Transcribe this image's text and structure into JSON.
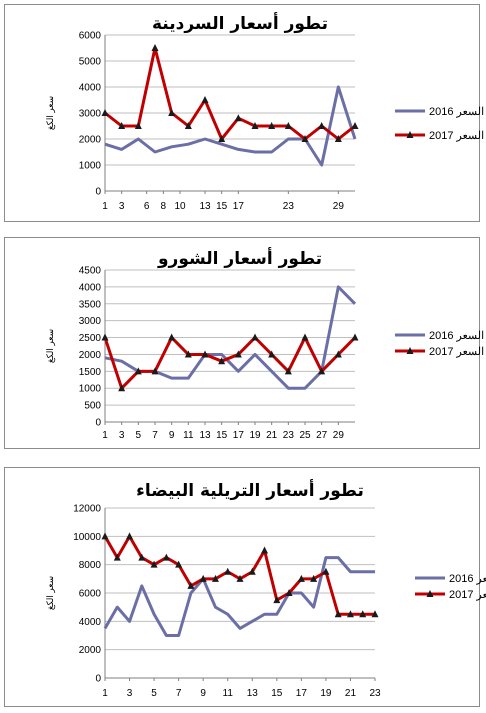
{
  "colors": {
    "series2016": "#6b6fa6",
    "series2017": "#c00000",
    "marker2017": "#1a1a1a",
    "grid": "#bfbfbf",
    "axis": "#7f7f7f"
  },
  "chart_data": [
    {
      "type": "line",
      "title": "تطور أسعار السردينة",
      "ylabel": "سعر الكغ",
      "ylim": [
        0,
        6000
      ],
      "yticks": [
        0,
        1000,
        2000,
        3000,
        4000,
        5000,
        6000
      ],
      "xlim": [
        1,
        31
      ],
      "xticks": [
        1,
        3,
        6,
        8,
        10,
        13,
        15,
        17,
        23,
        29
      ],
      "grid": true,
      "legend": "right",
      "series": [
        {
          "name": "2016 السعر",
          "marker": "none",
          "x": [
            1,
            3,
            5,
            7,
            9,
            11,
            13,
            15,
            17,
            19,
            21,
            23,
            25,
            27,
            29,
            31
          ],
          "y": [
            1800,
            1600,
            2000,
            1500,
            1700,
            1800,
            2000,
            1800,
            1600,
            1500,
            1500,
            2000,
            2000,
            1000,
            4000,
            2000
          ]
        },
        {
          "name": "2017 السعر",
          "marker": "triangle",
          "x": [
            1,
            3,
            5,
            7,
            9,
            11,
            13,
            15,
            17,
            19,
            21,
            23,
            25,
            27,
            29,
            31
          ],
          "y": [
            3000,
            2500,
            2500,
            5500,
            3000,
            2500,
            3500,
            2000,
            2800,
            2500,
            2500,
            2500,
            2000,
            2500,
            2000,
            2500
          ]
        }
      ]
    },
    {
      "type": "line",
      "title": "تطور أسعار الشورو",
      "ylabel": "سعر الكغ",
      "ylim": [
        0,
        4500
      ],
      "yticks": [
        0,
        500,
        1000,
        1500,
        2000,
        2500,
        3000,
        3500,
        4000,
        4500
      ],
      "xlim": [
        1,
        31
      ],
      "xticks": [
        1,
        3,
        5,
        7,
        9,
        11,
        13,
        15,
        17,
        19,
        21,
        23,
        25,
        27,
        29
      ],
      "grid": true,
      "legend": "right",
      "series": [
        {
          "name": "2016 السعر",
          "marker": "none",
          "x": [
            1,
            3,
            5,
            7,
            9,
            11,
            13,
            15,
            17,
            19,
            21,
            23,
            25,
            27,
            29,
            31
          ],
          "y": [
            1900,
            1800,
            1500,
            1500,
            1300,
            1300,
            2000,
            2000,
            1500,
            2000,
            1500,
            1000,
            1000,
            1500,
            4000,
            3500
          ]
        },
        {
          "name": "2017 السعر",
          "marker": "triangle",
          "x": [
            1,
            3,
            5,
            7,
            9,
            11,
            13,
            15,
            17,
            19,
            21,
            23,
            25,
            27,
            29,
            31
          ],
          "y": [
            2500,
            1000,
            1500,
            1500,
            2500,
            2000,
            2000,
            1800,
            2000,
            2500,
            2000,
            1500,
            2500,
            1500,
            2000,
            2500
          ]
        }
      ]
    },
    {
      "type": "line",
      "title": "تطور أسعار التريلية البيضاء",
      "ylabel": "سعر الكغ",
      "ylim": [
        0,
        12000
      ],
      "yticks": [
        0,
        2000,
        4000,
        6000,
        8000,
        10000,
        12000
      ],
      "xlim": [
        1,
        23
      ],
      "xticks": [
        1,
        3,
        5,
        7,
        9,
        11,
        13,
        15,
        17,
        19,
        21,
        23
      ],
      "grid": true,
      "legend": "right",
      "series": [
        {
          "name": "2016 السعر",
          "marker": "none",
          "x": [
            1,
            2,
            3,
            4,
            5,
            6,
            7,
            8,
            9,
            10,
            11,
            12,
            13,
            14,
            15,
            16,
            17,
            18,
            19,
            20,
            21,
            22,
            23
          ],
          "y": [
            3500,
            5000,
            4000,
            6500,
            4500,
            3000,
            3000,
            6000,
            7000,
            5000,
            4500,
            3500,
            4000,
            4500,
            4500,
            6000,
            6000,
            5000,
            8500,
            8500,
            7500,
            7500,
            7500
          ]
        },
        {
          "name": "2017 السعر",
          "marker": "triangle",
          "x": [
            1,
            2,
            3,
            4,
            5,
            6,
            7,
            8,
            9,
            10,
            11,
            12,
            13,
            14,
            15,
            16,
            17,
            18,
            19,
            20,
            21,
            22,
            23
          ],
          "y": [
            10000,
            8500,
            10000,
            8500,
            8000,
            8500,
            8000,
            6500,
            7000,
            7000,
            7500,
            7000,
            7500,
            9000,
            5500,
            6000,
            7000,
            7000,
            7500,
            4500,
            4500,
            4500,
            4500
          ]
        }
      ]
    }
  ]
}
